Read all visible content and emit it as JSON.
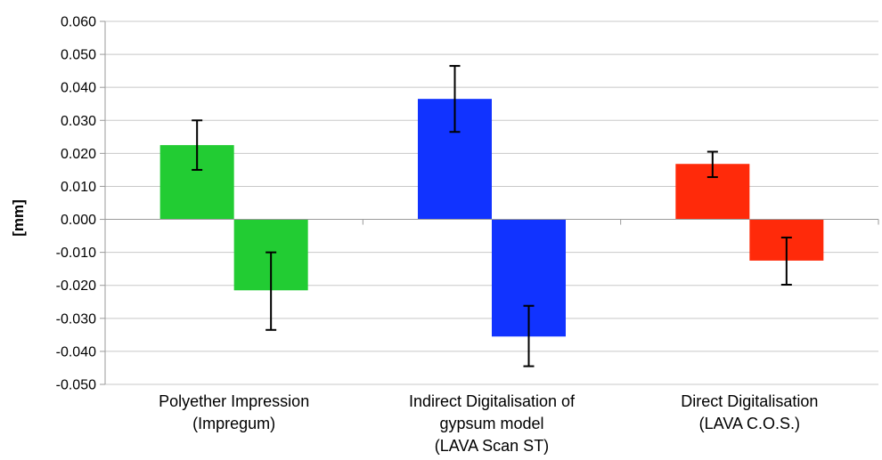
{
  "chart_data": {
    "type": "bar",
    "title": "",
    "ylabel": "[mm]",
    "xlabel": "",
    "ylim": [
      -0.05,
      0.06
    ],
    "ytick_step": 0.01,
    "y_tick_labels": [
      "0.060",
      "0.050",
      "0.040",
      "0.030",
      "0.020",
      "0.010",
      "0.000",
      "-0.010",
      "-0.020",
      "-0.030",
      "-0.040",
      "-0.050"
    ],
    "grid": true,
    "legend": "none",
    "categories": [
      {
        "lines": [
          "Polyether Impression",
          "(Impregum)"
        ]
      },
      {
        "lines": [
          "Indirect Digitalisation of",
          "gypsum model",
          "(LAVA Scan ST)"
        ]
      },
      {
        "lines": [
          "Direct Digitalisation",
          "(LAVA C.O.S.)"
        ]
      }
    ],
    "groups": [
      {
        "color": "#22cc33",
        "bars": [
          {
            "value": 0.0225,
            "err_low": 0.015,
            "err_high": 0.03
          },
          {
            "value": -0.0215,
            "err_low": -0.0335,
            "err_high": -0.01
          }
        ]
      },
      {
        "color": "#1133ff",
        "bars": [
          {
            "value": 0.0365,
            "err_low": 0.0265,
            "err_high": 0.0465
          },
          {
            "value": -0.0355,
            "err_low": -0.0445,
            "err_high": -0.0262
          }
        ]
      },
      {
        "color": "#ff2a0a",
        "bars": [
          {
            "value": 0.0168,
            "err_low": 0.0128,
            "err_high": 0.0205
          },
          {
            "value": -0.0125,
            "err_low": -0.0198,
            "err_high": -0.0055
          }
        ]
      }
    ]
  }
}
